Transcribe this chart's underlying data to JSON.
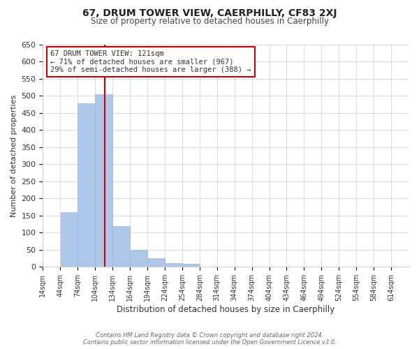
{
  "title": "67, DRUM TOWER VIEW, CAERPHILLY, CF83 2XJ",
  "subtitle": "Size of property relative to detached houses in Caerphilly",
  "xlabel": "Distribution of detached houses by size in Caerphilly",
  "ylabel": "Number of detached properties",
  "bin_labels": [
    "14sqm",
    "44sqm",
    "74sqm",
    "104sqm",
    "134sqm",
    "164sqm",
    "194sqm",
    "224sqm",
    "254sqm",
    "284sqm",
    "314sqm",
    "344sqm",
    "374sqm",
    "404sqm",
    "434sqm",
    "464sqm",
    "494sqm",
    "524sqm",
    "554sqm",
    "584sqm",
    "614sqm"
  ],
  "bin_edges": [
    14,
    44,
    74,
    104,
    134,
    164,
    194,
    224,
    254,
    284,
    314,
    344,
    374,
    404,
    434,
    464,
    494,
    524,
    554,
    584,
    614
  ],
  "bar_heights": [
    0,
    160,
    478,
    505,
    120,
    50,
    25,
    10,
    8,
    0,
    0,
    0,
    0,
    0,
    0,
    0,
    0,
    0,
    0,
    0
  ],
  "bar_color": "#aec6e8",
  "bar_edge_color": "#9ab8d8",
  "property_line_x": 121,
  "property_line_color": "#cc0000",
  "annotation_box_text": "67 DRUM TOWER VIEW: 121sqm\n← 71% of detached houses are smaller (967)\n29% of semi-detached houses are larger (388) →",
  "annotation_box_color": "#cc0000",
  "ylim": [
    0,
    650
  ],
  "yticks": [
    0,
    50,
    100,
    150,
    200,
    250,
    300,
    350,
    400,
    450,
    500,
    550,
    600,
    650
  ],
  "footer_line1": "Contains HM Land Registry data © Crown copyright and database right 2024.",
  "footer_line2": "Contains public sector information licensed under the Open Government Licence v3.0.",
  "background_color": "#ffffff",
  "grid_color": "#cccccc"
}
